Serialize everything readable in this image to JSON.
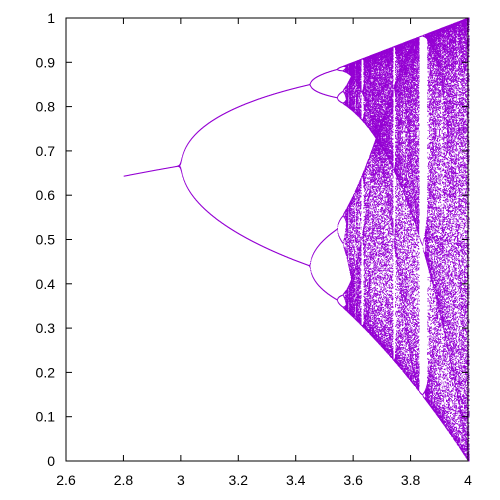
{
  "chart_data": {
    "type": "scatter",
    "title": "",
    "xlabel": "",
    "ylabel": "",
    "xlim": [
      2.6,
      4.0
    ],
    "ylim": [
      0.0,
      1.0
    ],
    "grid": false,
    "legend": "none",
    "x_ticks": [
      "2.6",
      "2.8",
      "3",
      "3.2",
      "3.4",
      "3.6",
      "3.8",
      "4"
    ],
    "y_ticks": [
      "0",
      "0.1",
      "0.2",
      "0.3",
      "0.4",
      "0.5",
      "0.6",
      "0.7",
      "0.8",
      "0.9",
      "1"
    ],
    "r_start": 2.8,
    "r_end": 4.0,
    "series": [
      {
        "map": "x[n+1] = r * x[n] * (1 - x[n])",
        "color": "#9400d3"
      }
    ]
  }
}
